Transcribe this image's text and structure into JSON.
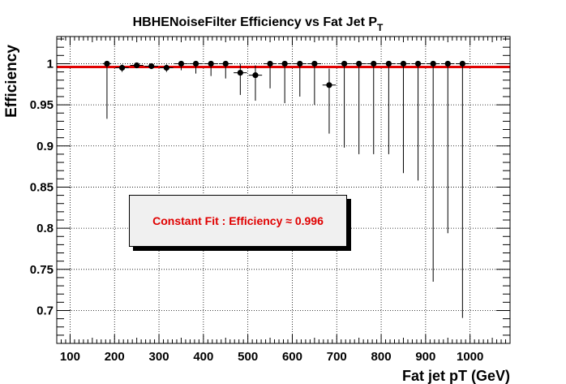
{
  "chart_data": {
    "type": "scatter",
    "title": "HBHENoiseFilter Efficiency vs Fat Jet P",
    "title_subscript": "T",
    "xlabel": "Fat jet pT (GeV)",
    "ylabel": "Efficiency",
    "xlim": [
      70,
      1090
    ],
    "ylim": [
      0.66,
      1.033
    ],
    "xticks": [
      100,
      200,
      300,
      400,
      500,
      600,
      700,
      800,
      900,
      1000
    ],
    "yticks": [
      0.7,
      0.75,
      0.8,
      0.85,
      0.9,
      0.95,
      1
    ],
    "ytick_labels": [
      "0.7",
      "0.75",
      "0.8",
      "0.85",
      "0.9",
      "0.95",
      "1"
    ],
    "grid": true,
    "series": [
      {
        "points": [
          {
            "x": 183,
            "y": 1.0,
            "xerr": 10,
            "ylo": 0.067,
            "yhi": 0.0
          },
          {
            "x": 217,
            "y": 0.995,
            "xerr": 15,
            "ylo": 0.005,
            "yhi": 0.004
          },
          {
            "x": 250,
            "y": 0.998,
            "xerr": 15,
            "ylo": 0.003,
            "yhi": 0.002
          },
          {
            "x": 283,
            "y": 0.997,
            "xerr": 15,
            "ylo": 0.003,
            "yhi": 0.003
          },
          {
            "x": 317,
            "y": 0.995,
            "xerr": 15,
            "ylo": 0.005,
            "yhi": 0.004
          },
          {
            "x": 350,
            "y": 1.0,
            "xerr": 15,
            "ylo": 0.008,
            "yhi": 0.0
          },
          {
            "x": 383,
            "y": 1.0,
            "xerr": 15,
            "ylo": 0.012,
            "yhi": 0.0
          },
          {
            "x": 417,
            "y": 1.0,
            "xerr": 15,
            "ylo": 0.015,
            "yhi": 0.0
          },
          {
            "x": 450,
            "y": 1.0,
            "xerr": 15,
            "ylo": 0.018,
            "yhi": 0.0
          },
          {
            "x": 483,
            "y": 0.989,
            "xerr": 15,
            "ylo": 0.027,
            "yhi": 0.011
          },
          {
            "x": 517,
            "y": 0.986,
            "xerr": 15,
            "ylo": 0.031,
            "yhi": 0.012
          },
          {
            "x": 550,
            "y": 1.0,
            "xerr": 15,
            "ylo": 0.03,
            "yhi": 0.0
          },
          {
            "x": 583,
            "y": 1.0,
            "xerr": 15,
            "ylo": 0.048,
            "yhi": 0.0
          },
          {
            "x": 617,
            "y": 1.0,
            "xerr": 15,
            "ylo": 0.04,
            "yhi": 0.0
          },
          {
            "x": 650,
            "y": 1.0,
            "xerr": 15,
            "ylo": 0.05,
            "yhi": 0.0
          },
          {
            "x": 683,
            "y": 0.974,
            "xerr": 15,
            "ylo": 0.059,
            "yhi": 0.02
          },
          {
            "x": 717,
            "y": 1.0,
            "xerr": 15,
            "ylo": 0.102,
            "yhi": 0.0
          },
          {
            "x": 750,
            "y": 1.0,
            "xerr": 15,
            "ylo": 0.11,
            "yhi": 0.0
          },
          {
            "x": 783,
            "y": 1.0,
            "xerr": 15,
            "ylo": 0.11,
            "yhi": 0.0
          },
          {
            "x": 817,
            "y": 1.0,
            "xerr": 15,
            "ylo": 0.11,
            "yhi": 0.0
          },
          {
            "x": 850,
            "y": 1.0,
            "xerr": 15,
            "ylo": 0.133,
            "yhi": 0.0
          },
          {
            "x": 883,
            "y": 1.0,
            "xerr": 15,
            "ylo": 0.142,
            "yhi": 0.0
          },
          {
            "x": 917,
            "y": 1.0,
            "xerr": 15,
            "ylo": 0.265,
            "yhi": 0.0
          },
          {
            "x": 950,
            "y": 1.0,
            "xerr": 15,
            "ylo": 0.206,
            "yhi": 0.0
          },
          {
            "x": 983,
            "y": 1.0,
            "xerr": 15,
            "ylo": 0.309,
            "yhi": 0.0
          }
        ]
      }
    ],
    "fit": {
      "type": "constant",
      "value": 0.996,
      "color": "#e00000"
    },
    "annotation": "Constant Fit : Efficiency ≈ 0.996"
  }
}
